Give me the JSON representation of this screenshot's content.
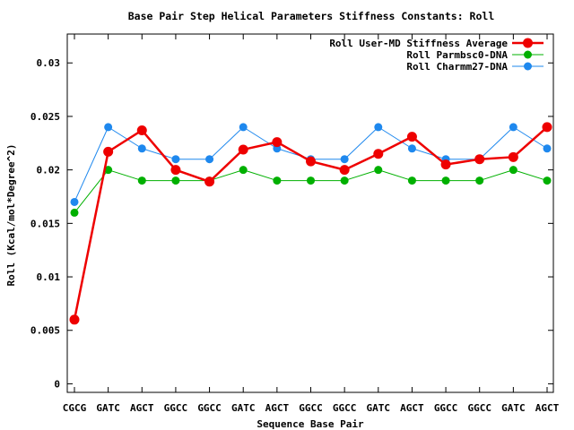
{
  "chart_data": {
    "type": "line",
    "title": "Base Pair Step Helical Parameters Stiffness Constants: Roll",
    "xlabel": "Sequence Base Pair",
    "ylabel": "Roll (Kcal/mol*Degree^2)",
    "categories": [
      "CGCG",
      "GATC",
      "AGCT",
      "GGCC",
      "GGCC",
      "GATC",
      "AGCT",
      "GGCC",
      "GGCC",
      "GATC",
      "AGCT",
      "GGCC",
      "GGCC",
      "GATC",
      "AGCT"
    ],
    "ylim": [
      -0.0008,
      0.0327
    ],
    "yticks": [
      0,
      0.005,
      0.01,
      0.015,
      0.02,
      0.025,
      0.03
    ],
    "ytick_labels": [
      "0",
      "0.005",
      "0.01",
      "0.015",
      "0.02",
      "0.025",
      "0.03"
    ],
    "grid": false,
    "legend_position": "top-right",
    "series": [
      {
        "name": "Roll User-MD Stiffness Average",
        "color": "#ee0000",
        "values": [
          0.006,
          0.0217,
          0.0237,
          0.02,
          0.0189,
          0.0219,
          0.0226,
          0.0208,
          0.02,
          0.0215,
          0.0231,
          0.0205,
          0.021,
          0.0212,
          0.024
        ]
      },
      {
        "name": "Roll Parmbsc0-DNA",
        "color": "#00b000",
        "values": [
          0.016,
          0.02,
          0.019,
          0.019,
          0.019,
          0.02,
          0.019,
          0.019,
          0.019,
          0.02,
          0.019,
          0.019,
          0.019,
          0.02,
          0.019
        ]
      },
      {
        "name": "Roll Charmm27-DNA",
        "color": "#1e88ee",
        "values": [
          0.017,
          0.024,
          0.022,
          0.021,
          0.021,
          0.024,
          0.022,
          0.021,
          0.021,
          0.024,
          0.022,
          0.021,
          0.021,
          0.024,
          0.022
        ]
      }
    ]
  }
}
